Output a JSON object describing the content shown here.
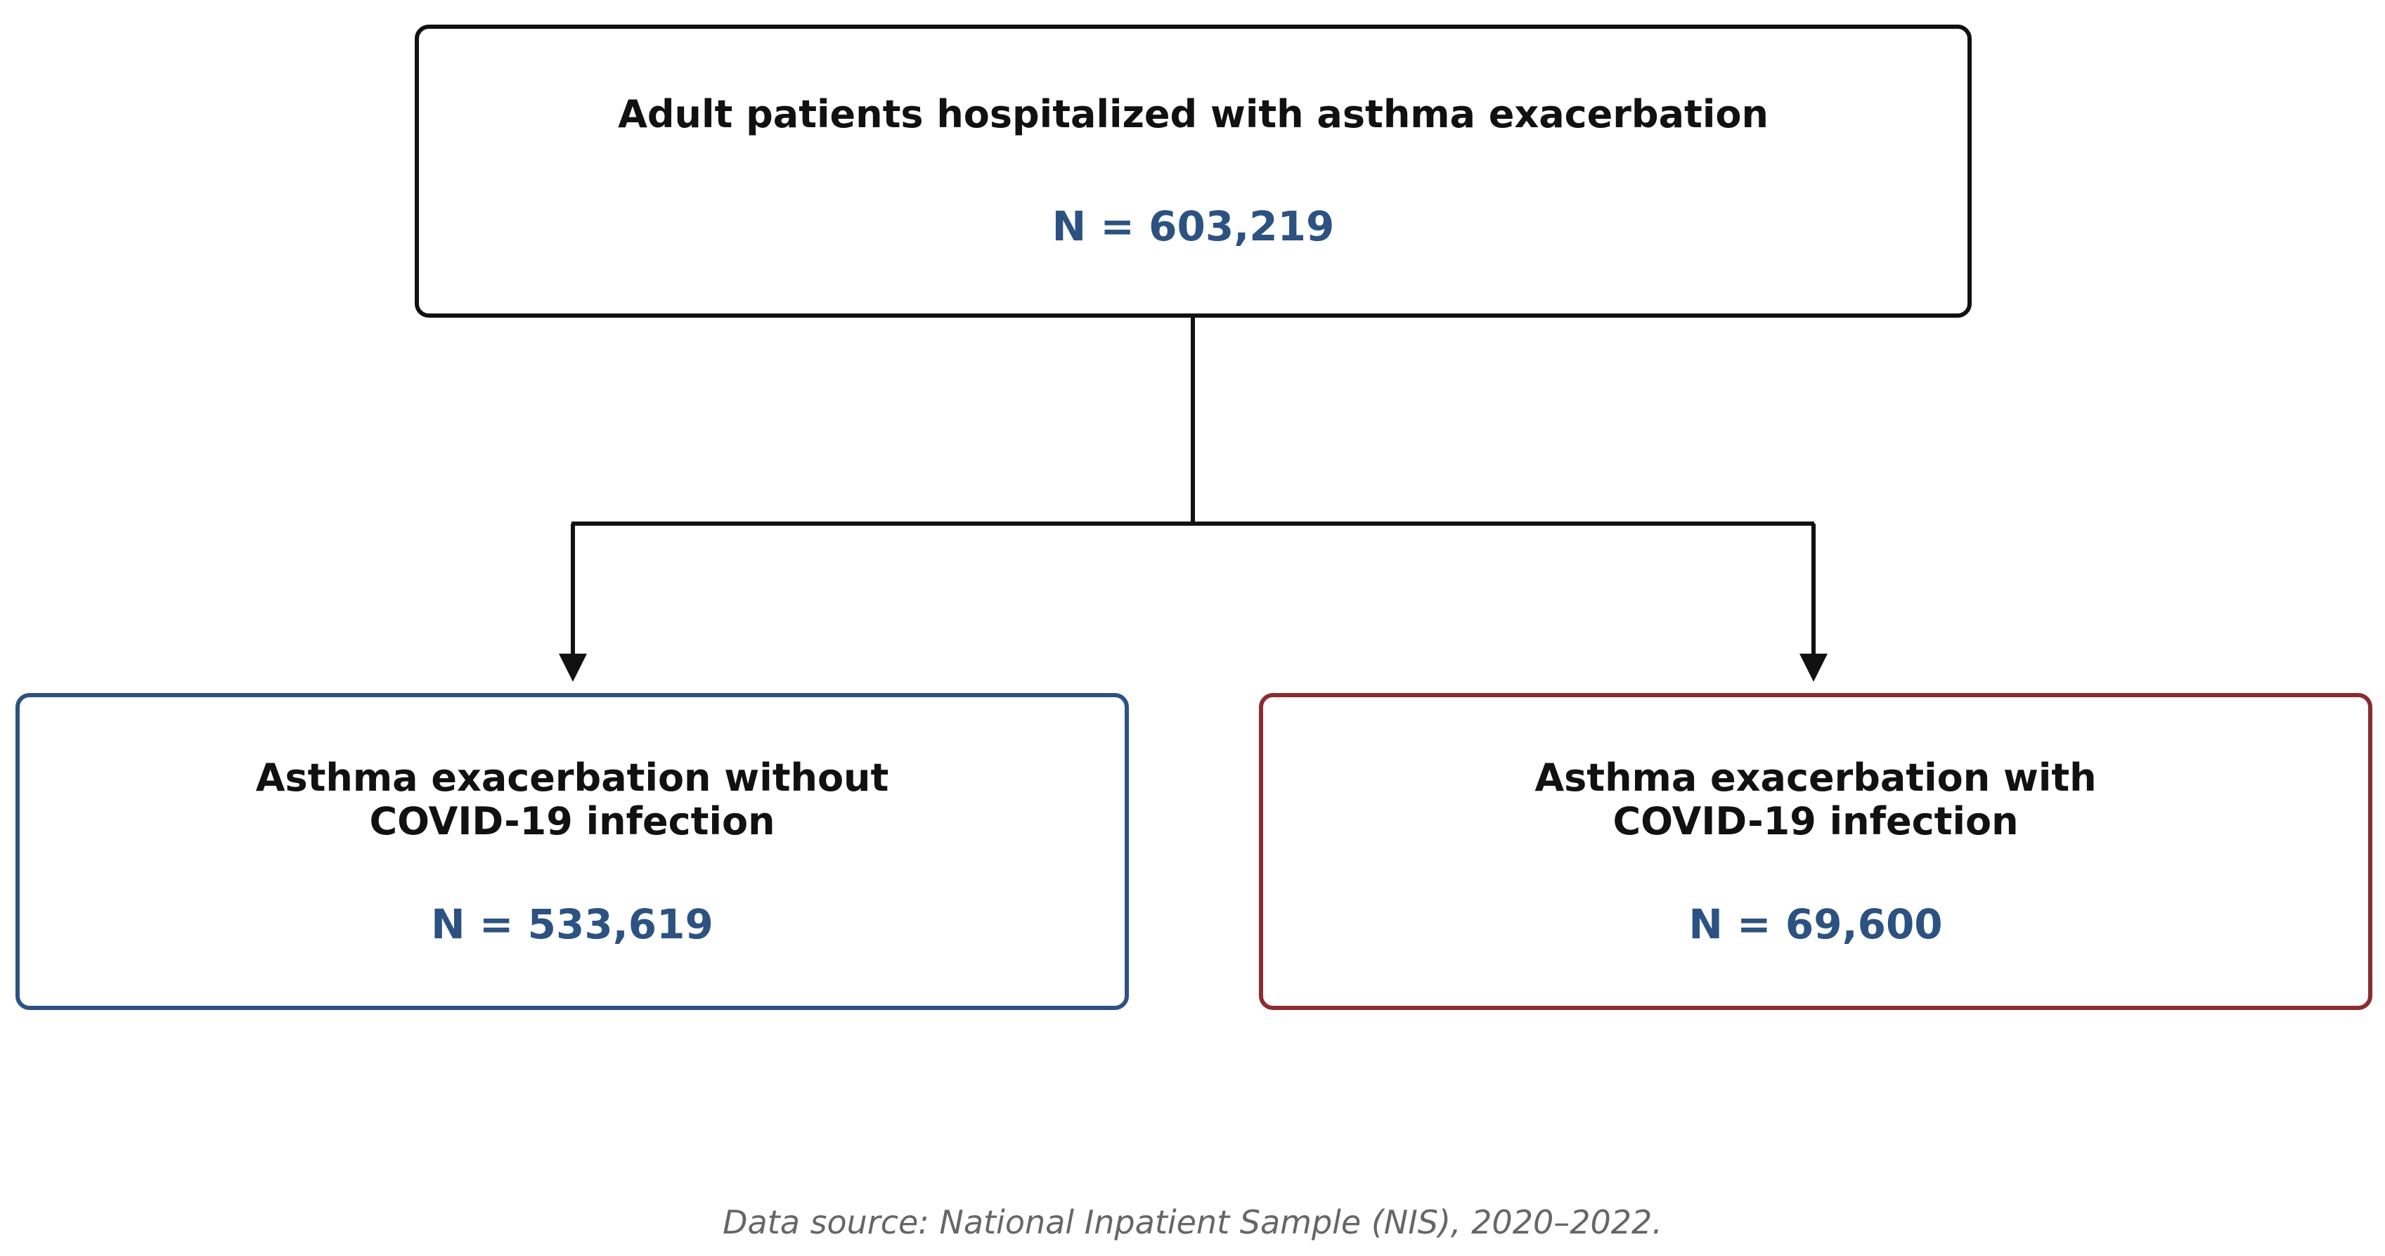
{
  "flowchart": {
    "top_box": {
      "title": "Adult patients hospitalized with asthma exacerbation",
      "count": "N = 603,219"
    },
    "left_box": {
      "title": "Asthma exacerbation without\nCOVID-19 infection",
      "count": "N = 533,619"
    },
    "right_box": {
      "title": "Asthma exacerbation with\nCOVID-19 infection",
      "count": "N = 69,600"
    }
  },
  "colors": {
    "count_text": "#2c5282",
    "left_border": "#2c5282",
    "right_border": "#8b2c30",
    "top_border": "#111111",
    "connector": "#111111"
  },
  "source_note": "Data source: National Inpatient Sample (NIS), 2020–2022."
}
